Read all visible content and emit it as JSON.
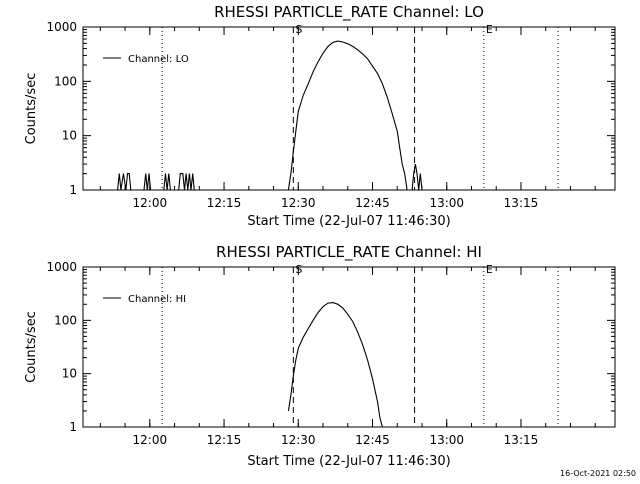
{
  "chart_data": [
    {
      "type": "line",
      "title": "RHESSI PARTICLE_RATE Channel: LO",
      "xlabel": "Start Time (22-Jul-07 11:46:30)",
      "ylabel": "Counts/sec",
      "yscale": "log",
      "ylim": [
        1,
        1000
      ],
      "xlim": [
        "11:46:30",
        "13:34:00"
      ],
      "x_ticks": [
        "12:00",
        "12:15",
        "12:30",
        "12:45",
        "13:00",
        "13:15"
      ],
      "y_ticks": [
        "1",
        "10",
        "100",
        "1000"
      ],
      "legend": {
        "position": "top-left",
        "entries": [
          "Channel: LO"
        ]
      },
      "markers": [
        {
          "label": "S",
          "time": "12:29:00",
          "style": "dashed"
        },
        {
          "label": "",
          "time": "12:53:30",
          "style": "dashed"
        },
        {
          "label": "E",
          "time": "13:07:30",
          "style": "dotted"
        },
        {
          "label": "",
          "time": "12:02:30",
          "style": "dotted"
        },
        {
          "label": "",
          "time": "13:22:30",
          "style": "dotted"
        }
      ],
      "series": [
        {
          "name": "Channel: LO",
          "points": [
            [
              "11:53:30",
              1
            ],
            [
              "11:53:50",
              2
            ],
            [
              "11:54:10",
              1
            ],
            [
              "11:54:40",
              2
            ],
            [
              "11:55:10",
              1
            ],
            [
              "11:55:30",
              2
            ],
            [
              "11:55:50",
              2
            ],
            [
              "11:56:10",
              1
            ],
            [
              "11:58:50",
              1
            ],
            [
              "11:59:10",
              2
            ],
            [
              "11:59:30",
              1
            ],
            [
              "11:59:50",
              2
            ],
            [
              "12:00:10",
              1
            ],
            [
              "12:02:50",
              1
            ],
            [
              "12:03:10",
              2
            ],
            [
              "12:03:30",
              1
            ],
            [
              "12:03:50",
              2
            ],
            [
              "12:04:10",
              1
            ],
            [
              "12:05:50",
              1
            ],
            [
              "12:06:10",
              2
            ],
            [
              "12:06:40",
              2
            ],
            [
              "12:07:00",
              1
            ],
            [
              "12:07:20",
              2
            ],
            [
              "12:07:40",
              1
            ],
            [
              "12:08:00",
              2
            ],
            [
              "12:08:20",
              1
            ],
            [
              "12:08:40",
              2
            ],
            [
              "12:09:00",
              1
            ],
            [
              "12:28:00",
              1
            ],
            [
              "12:28:30",
              2
            ],
            [
              "12:29:00",
              5
            ],
            [
              "12:29:30",
              12
            ],
            [
              "12:30:00",
              28
            ],
            [
              "12:31:00",
              55
            ],
            [
              "12:32:00",
              90
            ],
            [
              "12:33:00",
              150
            ],
            [
              "12:34:00",
              230
            ],
            [
              "12:35:00",
              330
            ],
            [
              "12:36:00",
              440
            ],
            [
              "12:37:00",
              520
            ],
            [
              "12:38:00",
              550
            ],
            [
              "12:39:00",
              530
            ],
            [
              "12:40:00",
              490
            ],
            [
              "12:41:00",
              440
            ],
            [
              "12:42:00",
              380
            ],
            [
              "12:43:00",
              320
            ],
            [
              "12:44:00",
              260
            ],
            [
              "12:45:00",
              190
            ],
            [
              "12:46:00",
              140
            ],
            [
              "12:47:00",
              90
            ],
            [
              "12:48:00",
              50
            ],
            [
              "12:49:00",
              25
            ],
            [
              "12:50:00",
              12
            ],
            [
              "12:50:30",
              6
            ],
            [
              "12:51:00",
              3
            ],
            [
              "12:51:30",
              2
            ],
            [
              "12:52:00",
              1
            ],
            [
              "12:53:00",
              1
            ],
            [
              "12:53:20",
              2
            ],
            [
              "12:53:40",
              3
            ],
            [
              "12:54:00",
              2
            ],
            [
              "12:54:20",
              1
            ],
            [
              "12:54:40",
              2
            ],
            [
              "12:55:00",
              1
            ]
          ]
        }
      ]
    },
    {
      "type": "line",
      "title": "RHESSI PARTICLE_RATE Channel: HI",
      "xlabel": "Start Time (22-Jul-07 11:46:30)",
      "ylabel": "Counts/sec",
      "yscale": "log",
      "ylim": [
        1,
        1000
      ],
      "xlim": [
        "11:46:30",
        "13:34:00"
      ],
      "x_ticks": [
        "12:00",
        "12:15",
        "12:30",
        "12:45",
        "13:00",
        "13:15"
      ],
      "y_ticks": [
        "1",
        "10",
        "100",
        "1000"
      ],
      "legend": {
        "position": "top-left",
        "entries": [
          "Channel: HI"
        ]
      },
      "markers": [
        {
          "label": "S",
          "time": "12:29:00",
          "style": "dashed"
        },
        {
          "label": "",
          "time": "12:53:30",
          "style": "dashed"
        },
        {
          "label": "E",
          "time": "13:07:30",
          "style": "dotted"
        },
        {
          "label": "",
          "time": "12:02:30",
          "style": "dotted"
        },
        {
          "label": "",
          "time": "13:22:30",
          "style": "dotted"
        }
      ],
      "series": [
        {
          "name": "Channel: HI",
          "points": [
            [
              "12:28:00",
              2
            ],
            [
              "12:28:30",
              4
            ],
            [
              "12:29:00",
              9
            ],
            [
              "12:29:30",
              18
            ],
            [
              "12:30:00",
              30
            ],
            [
              "12:31:00",
              48
            ],
            [
              "12:32:00",
              70
            ],
            [
              "12:33:00",
              100
            ],
            [
              "12:34:00",
              140
            ],
            [
              "12:35:00",
              180
            ],
            [
              "12:36:00",
              210
            ],
            [
              "12:37:00",
              215
            ],
            [
              "12:38:00",
              200
            ],
            [
              "12:39:00",
              170
            ],
            [
              "12:40:00",
              130
            ],
            [
              "12:41:00",
              95
            ],
            [
              "12:42:00",
              60
            ],
            [
              "12:43:00",
              35
            ],
            [
              "12:44:00",
              18
            ],
            [
              "12:45:00",
              8
            ],
            [
              "12:46:00",
              3
            ],
            [
              "12:46:30",
              1.5
            ],
            [
              "12:47:00",
              1
            ]
          ]
        }
      ]
    }
  ],
  "footer": {
    "timestamp": "16-Oct-2021 02:50"
  }
}
